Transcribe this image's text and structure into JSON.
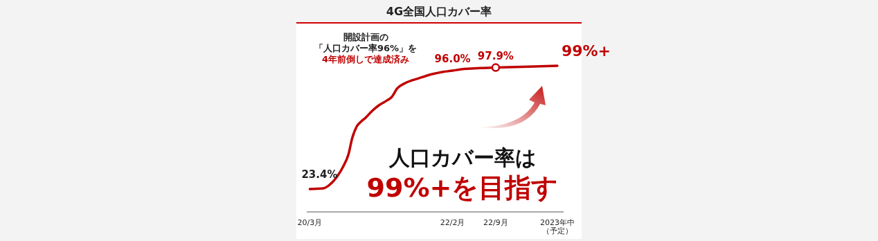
{
  "chart_data": {
    "type": "line",
    "title": "4G全国人口カバー率",
    "color": "#c00000",
    "xlim": [
      "2020-02-15",
      "2023-08-01"
    ],
    "xticks": [
      {
        "value": "2020-03-01",
        "label": "20/3月"
      },
      {
        "value": "2022-02-01",
        "label": "22/2月"
      },
      {
        "value": "2022-09-01",
        "label": "22/9月"
      },
      {
        "value": "2023-07-01",
        "label": "2023年中（予定）"
      }
    ],
    "series": [
      {
        "x": [
          "2020-03-01",
          "2020-05-05",
          "2020-06-01",
          "2020-07-13",
          "2020-08-13",
          "2020-09-08",
          "2020-09-25",
          "2020-10-17",
          "2020-11-10",
          "2020-11-30",
          "2021-01-02",
          "2021-02-04",
          "2021-03-16",
          "2021-04-08",
          "2021-05-04",
          "2021-06-13",
          "2021-08-18",
          "2021-10-24",
          "2021-12-12",
          "2022-02-01",
          "2022-03-16",
          "2022-05-02",
          "2022-06-18",
          "2022-09-01",
          "2023-02-09",
          "2023-07-01"
        ],
        "values": [
          23.4,
          23.8,
          25.5,
          31.0,
          37.4,
          45.1,
          54.4,
          61.6,
          65.0,
          67.1,
          71.4,
          74.8,
          77.8,
          79.9,
          85.0,
          88.4,
          91.3,
          93.9,
          95.2,
          96.0,
          96.9,
          97.3,
          97.6,
          97.9,
          98.5,
          99
        ],
        "value_labels": [
          "23.4%",
          null,
          null,
          null,
          null,
          null,
          null,
          null,
          null,
          null,
          null,
          null,
          null,
          null,
          null,
          null,
          null,
          null,
          null,
          "96.0%",
          null,
          null,
          null,
          "97.9%",
          null,
          "99%+"
        ]
      },
      {
        "type": "scatter",
        "marker": "circle",
        "x": [
          "2022-09-01"
        ],
        "values": [
          97.9
        ]
      }
    ],
    "marker": "none",
    "annotations": [
      "開設計画の",
      "「人口カバー率96%」を",
      "4年前倒しで達成済み",
      "人口カバー率は",
      "99%+を目指す"
    ]
  }
}
